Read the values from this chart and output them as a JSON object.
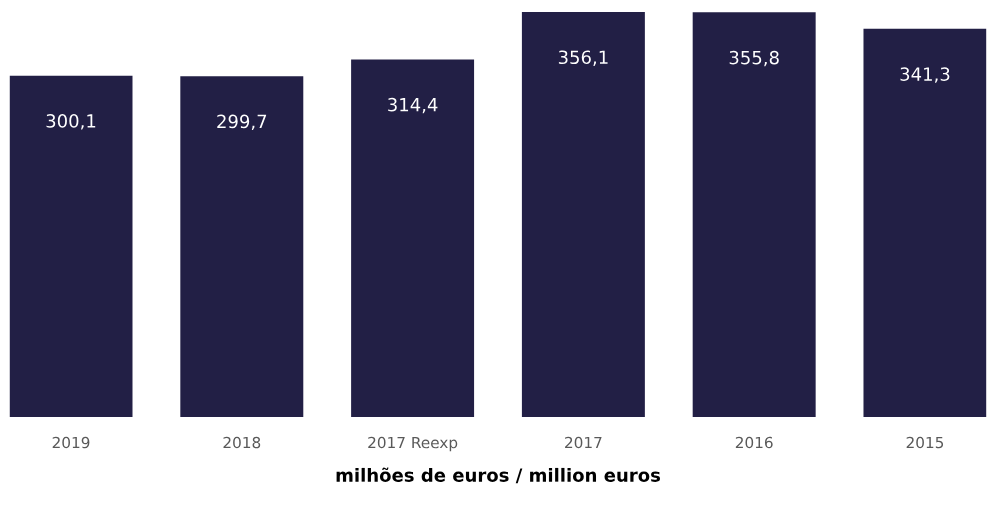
{
  "chart_data": {
    "type": "bar",
    "xlabel": "milhões de euros / million euros",
    "categories": [
      "2019",
      "2018",
      "2017 Reexp",
      "2017",
      "2016",
      "2015"
    ],
    "values": [
      300.1,
      299.7,
      314.4,
      356.1,
      355.8,
      341.3
    ],
    "value_labels": [
      "300,1",
      "299,7",
      "314,4",
      "356,1",
      "355,8",
      "341,3"
    ],
    "color": "#221f45",
    "tick_labels": "x",
    "grid": false,
    "legend": false
  }
}
